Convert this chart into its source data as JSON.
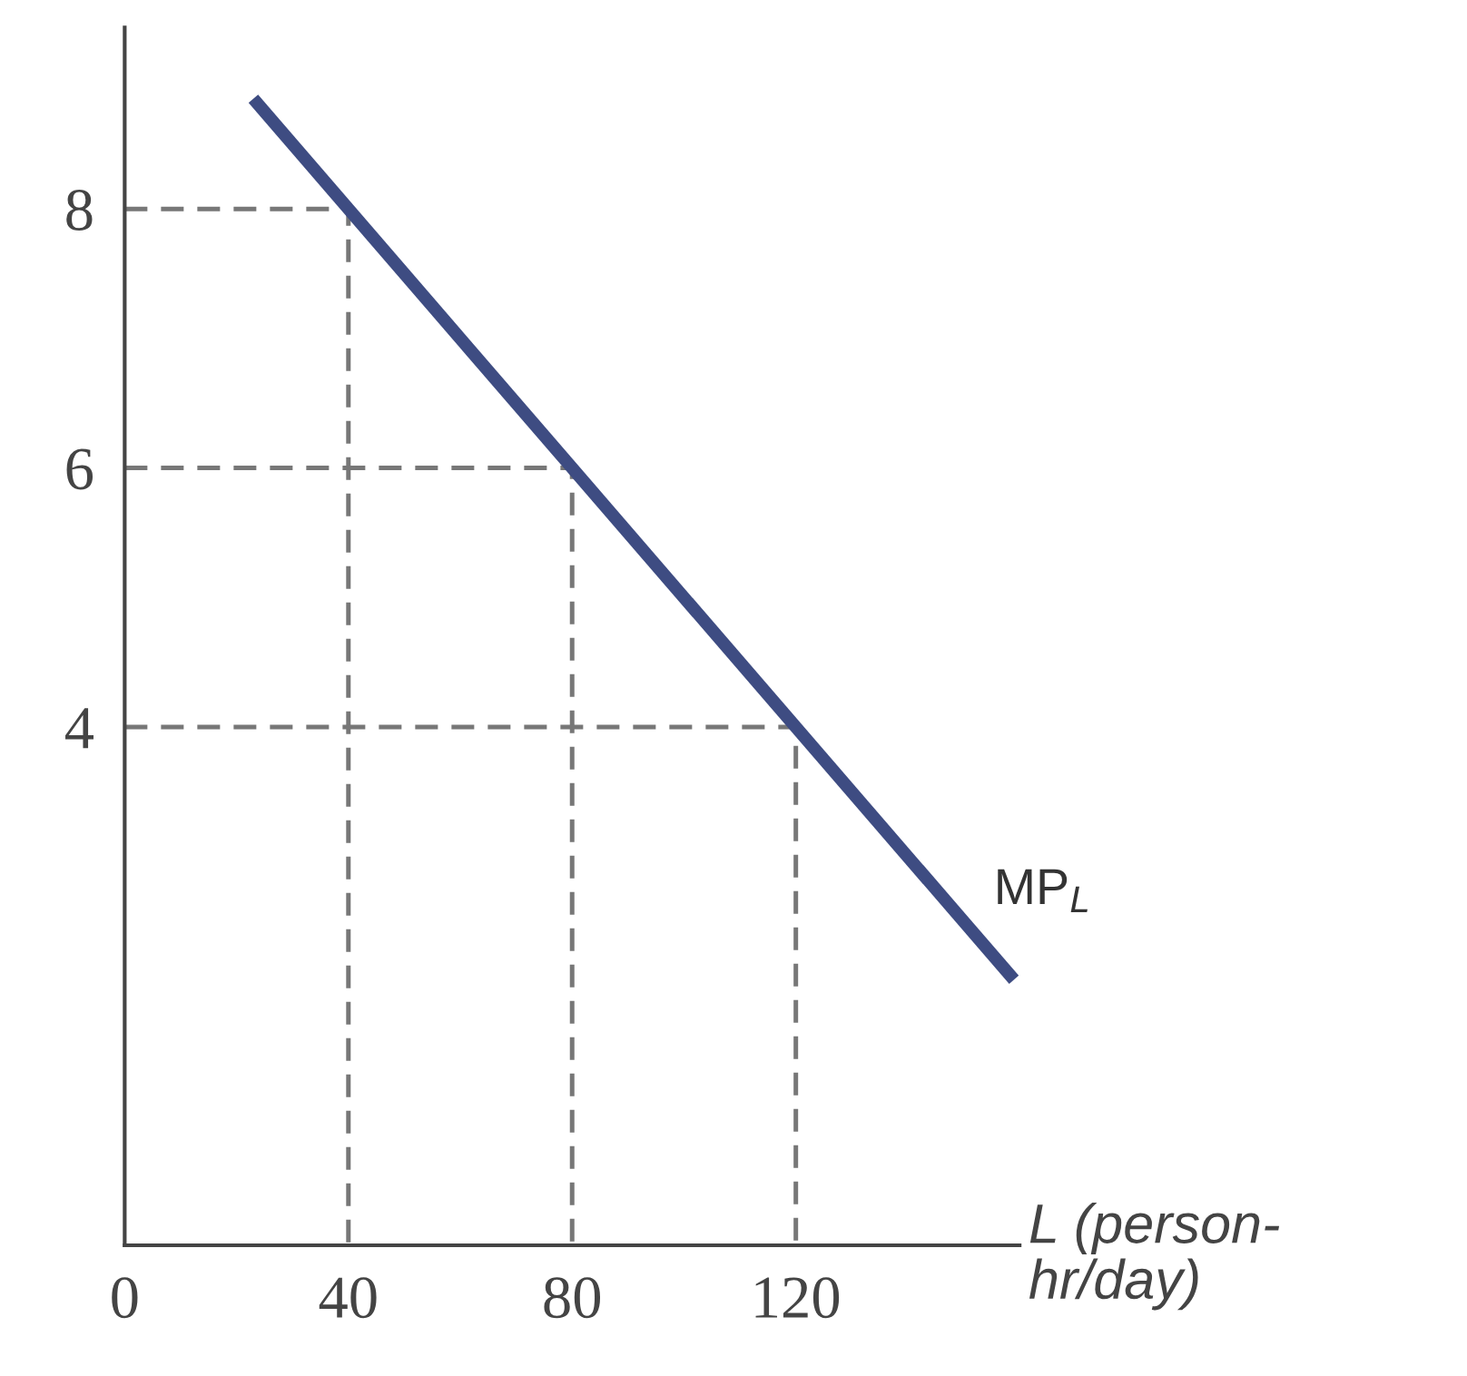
{
  "chart_data": {
    "type": "line",
    "xlabel": "L (person-\nhr/day)",
    "series": [
      {
        "color": "#3e4c82",
        "x": [
          23,
          159
        ],
        "values": [
          8.85,
          2.05
        ]
      },
      {
        "color": "#777777",
        "line_style": "dashed",
        "x": [
          0,
          40,
          40
        ],
        "values": [
          8,
          8,
          0
        ]
      },
      {
        "color": "#777777",
        "line_style": "dashed",
        "x": [
          0,
          80,
          80
        ],
        "values": [
          6,
          6,
          0
        ]
      },
      {
        "color": "#777777",
        "line_style": "dashed",
        "x": [
          0,
          120,
          120
        ],
        "values": [
          4,
          4,
          0
        ]
      }
    ],
    "annotations": [
      "MP$_{L}$"
    ],
    "xlim": [
      0,
      160
    ],
    "ylim": [
      0,
      9.4
    ],
    "xticks": [
      {
        "value": 0,
        "label": "0"
      },
      40,
      80,
      120
    ],
    "yticks": [
      4,
      6,
      8
    ],
    "grid": false,
    "legend": false,
    "marker": "none"
  }
}
